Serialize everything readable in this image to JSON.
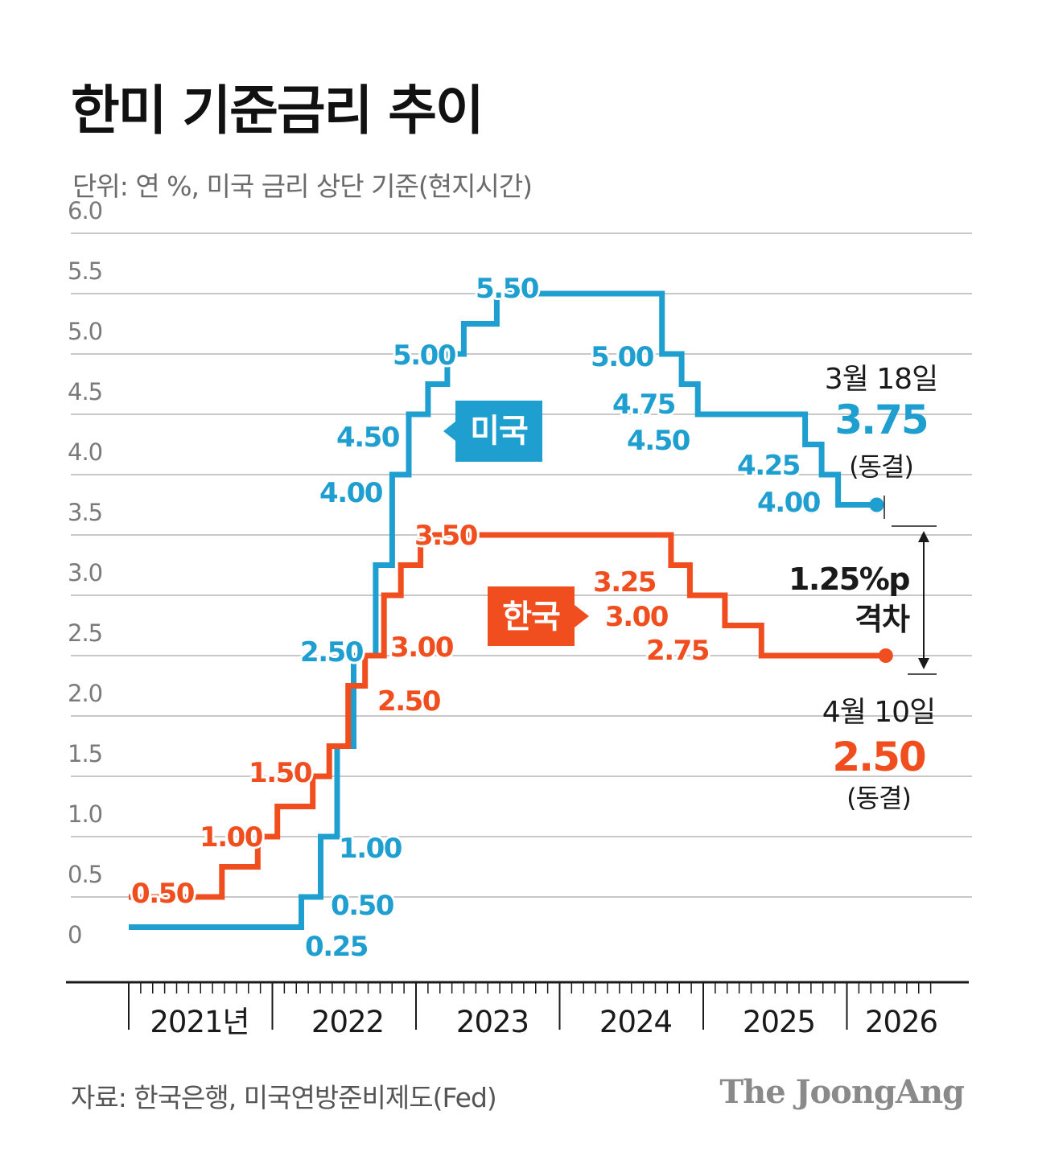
{
  "title": "한미 기준금리 추이",
  "subtitle": "단위: 연 %, 미국 금리 상단 기준(현지시간)",
  "source": "자료: 한국은행, 미국연방준비제도(Fed)",
  "logo": "The JoongAng",
  "colors": {
    "us": "#1f9fcf",
    "korea": "#f04e1f",
    "grid": "#c8c8c8",
    "text": "#1a1a1a"
  },
  "chart_data": {
    "type": "line",
    "step": true,
    "ylim": [
      0,
      6.0
    ],
    "y_ticks": [
      "0",
      "0.5",
      "1.0",
      "1.5",
      "2.0",
      "2.5",
      "3.0",
      "3.5",
      "4.0",
      "4.5",
      "5.0",
      "5.5",
      "6.0"
    ],
    "x_years": [
      "2021년",
      "2022",
      "2023",
      "2024",
      "2025",
      "2026"
    ],
    "xlim": [
      "2021-01-01",
      "2026-05-31"
    ],
    "grid": true,
    "series": [
      {
        "name": "미국",
        "color": "#1f9fcf",
        "points": [
          [
            "2021-01-01",
            0.25
          ],
          [
            "2022-03-16",
            0.5
          ],
          [
            "2022-05-04",
            1.0
          ],
          [
            "2022-06-15",
            1.75
          ],
          [
            "2022-07-27",
            2.5
          ],
          [
            "2022-09-21",
            3.25
          ],
          [
            "2022-11-02",
            4.0
          ],
          [
            "2022-12-14",
            4.5
          ],
          [
            "2023-02-01",
            4.75
          ],
          [
            "2023-03-22",
            5.0
          ],
          [
            "2023-05-03",
            5.25
          ],
          [
            "2023-07-26",
            5.5
          ],
          [
            "2024-09-18",
            5.0
          ],
          [
            "2024-11-07",
            4.75
          ],
          [
            "2024-12-18",
            4.5
          ],
          [
            "2025-09-17",
            4.25
          ],
          [
            "2025-10-29",
            4.0
          ],
          [
            "2025-12-10",
            3.75
          ],
          [
            "2026-03-18",
            3.75
          ]
        ]
      },
      {
        "name": "한국",
        "color": "#f04e1f",
        "points": [
          [
            "2021-01-01",
            0.5
          ],
          [
            "2021-08-26",
            0.75
          ],
          [
            "2021-11-25",
            1.0
          ],
          [
            "2022-01-14",
            1.25
          ],
          [
            "2022-04-14",
            1.5
          ],
          [
            "2022-05-26",
            1.75
          ],
          [
            "2022-07-13",
            2.25
          ],
          [
            "2022-08-25",
            2.5
          ],
          [
            "2022-10-12",
            3.0
          ],
          [
            "2022-11-24",
            3.25
          ],
          [
            "2023-01-13",
            3.5
          ],
          [
            "2024-10-11",
            3.25
          ],
          [
            "2024-11-28",
            3.0
          ],
          [
            "2025-02-25",
            2.75
          ],
          [
            "2025-05-29",
            2.5
          ],
          [
            "2026-04-10",
            2.5
          ]
        ]
      }
    ],
    "us_labels": [
      "0.25",
      "0.50",
      "1.00",
      "2.50",
      "4.00",
      "4.50",
      "5.00",
      "5.50",
      "5.00",
      "4.75",
      "4.50",
      "4.25",
      "4.00"
    ],
    "korea_labels": [
      "0.50",
      "1.00",
      "1.50",
      "2.50",
      "3.00",
      "3.50",
      "3.25",
      "3.00",
      "2.75"
    ],
    "series_tags": {
      "us": "미국",
      "korea": "한국"
    },
    "annotations": {
      "us_date": "3월 18일",
      "us_value": "3.75",
      "us_status": "(동결)",
      "korea_date": "4월 10일",
      "korea_value": "2.50",
      "korea_status": "(동결)",
      "gap_value": "1.25%p",
      "gap_label": "격차"
    }
  }
}
